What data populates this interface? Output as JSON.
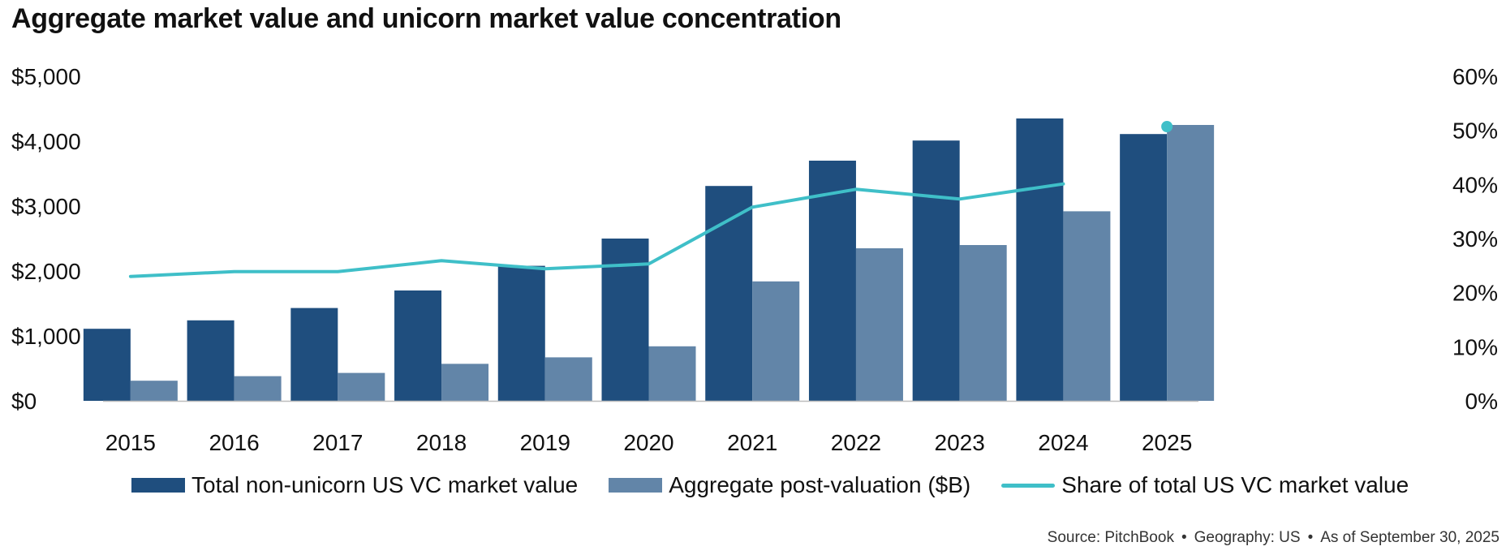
{
  "chart_data": {
    "type": "bar",
    "title": "Aggregate market value and unicorn market value concentration",
    "categories": [
      "2015",
      "2016",
      "2017",
      "2018",
      "2019",
      "2020",
      "2021",
      "2022",
      "2023",
      "2024",
      "2025"
    ],
    "series": [
      {
        "name": "Total non-unicorn US VC market value",
        "type": "bar",
        "axis": "left",
        "color": "#1f4e7e",
        "values": [
          1110,
          1240,
          1430,
          1700,
          2080,
          2500,
          3310,
          3700,
          4010,
          4350,
          4110
        ]
      },
      {
        "name": "Aggregate post-valuation ($B)",
        "type": "bar",
        "axis": "left",
        "color": "#6285a8",
        "values": [
          310,
          380,
          430,
          570,
          670,
          840,
          1840,
          2350,
          2400,
          2920,
          4250
        ]
      },
      {
        "name": "Share of total US VC market value",
        "type": "line",
        "axis": "right",
        "color": "#3fbfc8",
        "values": [
          23,
          23.9,
          23.9,
          25.9,
          24.4,
          25.3,
          35.8,
          39.1,
          37.3,
          40.1,
          50.7
        ]
      }
    ],
    "y_left": {
      "min": 0,
      "max": 5000,
      "ticks": [
        0,
        1000,
        2000,
        3000,
        4000,
        5000
      ],
      "tick_labels": [
        "$0",
        "$1,000",
        "$2,000",
        "$3,000",
        "$4,000",
        "$5,000"
      ]
    },
    "y_right": {
      "min": 0,
      "max": 60,
      "ticks": [
        0,
        10,
        20,
        30,
        40,
        50,
        60
      ],
      "tick_labels": [
        "0%",
        "10%",
        "20%",
        "30%",
        "40%",
        "50%",
        "60%"
      ]
    },
    "legend_position": "bottom",
    "grid": false
  },
  "footer": {
    "source": "Source: PitchBook",
    "geography": "Geography: US",
    "as_of": "As of September 30, 2025",
    "separator": "•"
  }
}
